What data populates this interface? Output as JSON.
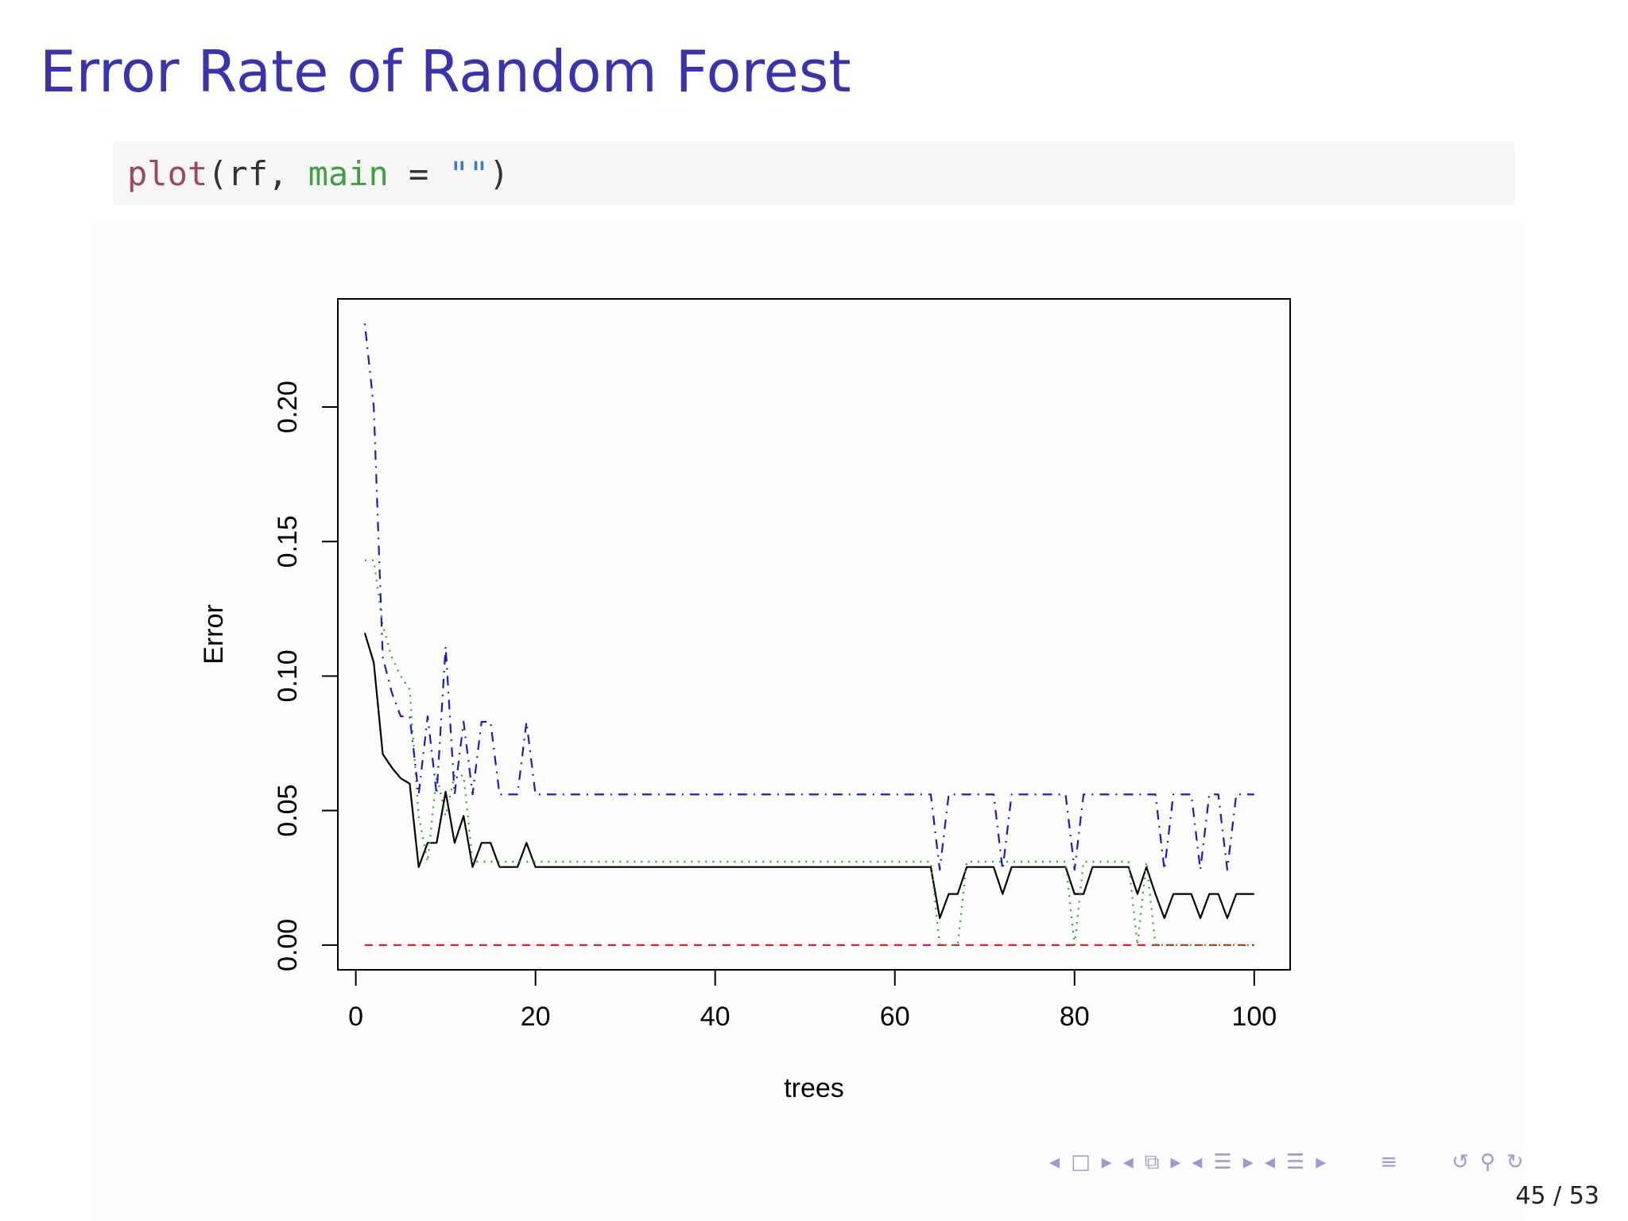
{
  "slide": {
    "title": "Error Rate of Random Forest",
    "code": {
      "fn": "plot",
      "open": "(rf, ",
      "arg": "main",
      "eq": " = ",
      "str": "\"\"",
      "close": ")"
    },
    "page": "45 / 53",
    "nav_icons": [
      "nav-left-arrow-icon",
      "frame-icon",
      "nav-right-arrow-icon",
      "nav-left-arrow-icon",
      "section-icon",
      "nav-right-arrow-icon",
      "nav-left-arrow-icon",
      "subsection-icon",
      "nav-right-arrow-icon",
      "nav-left-arrow-icon",
      "slide-list-icon",
      "nav-right-arrow-icon",
      "align-icon",
      "undo-icon",
      "search-icon",
      "redo-icon"
    ]
  },
  "chart_data": {
    "type": "line",
    "title": "",
    "xlabel": "trees",
    "ylabel": "Error",
    "xlim": [
      0,
      100
    ],
    "ylim": [
      0,
      0.23
    ],
    "xticks": [
      0,
      20,
      40,
      60,
      80,
      100
    ],
    "yticks": [
      0.0,
      0.05,
      0.1,
      0.15,
      0.2
    ],
    "ytick_labels": [
      "0.00",
      "0.05",
      "0.10",
      "0.15",
      "0.20"
    ],
    "legend": "none",
    "series": [
      {
        "color": "#000000",
        "dash": "solid",
        "x": [
          1,
          2,
          3,
          4,
          5,
          6,
          7,
          8,
          9,
          10,
          11,
          12,
          13,
          14,
          15,
          16,
          17,
          18,
          19,
          20,
          30,
          40,
          50,
          60,
          64,
          65,
          66,
          67,
          68,
          69,
          70,
          71,
          72,
          73,
          74,
          75,
          76,
          77,
          78,
          79,
          80,
          81,
          82,
          83,
          84,
          85,
          86,
          87,
          88,
          89,
          90,
          91,
          92,
          93,
          94,
          95,
          96,
          97,
          98,
          99,
          100
        ],
        "values": [
          0.116,
          0.105,
          0.071,
          0.066,
          0.062,
          0.06,
          0.029,
          0.038,
          0.038,
          0.057,
          0.038,
          0.048,
          0.029,
          0.038,
          0.038,
          0.029,
          0.029,
          0.029,
          0.038,
          0.029,
          0.029,
          0.029,
          0.029,
          0.029,
          0.029,
          0.01,
          0.019,
          0.019,
          0.029,
          0.029,
          0.029,
          0.029,
          0.019,
          0.029,
          0.029,
          0.029,
          0.029,
          0.029,
          0.029,
          0.029,
          0.019,
          0.019,
          0.029,
          0.029,
          0.029,
          0.029,
          0.029,
          0.019,
          0.029,
          0.019,
          0.01,
          0.019,
          0.019,
          0.019,
          0.01,
          0.019,
          0.019,
          0.01,
          0.019,
          0.019,
          0.019
        ]
      },
      {
        "color": "#dd2222",
        "dash": "dashed",
        "x": [
          1,
          100
        ],
        "values": [
          0,
          0
        ]
      },
      {
        "color": "#22aa22",
        "dash": "dotted",
        "x": [
          1,
          2,
          3,
          4,
          5,
          6,
          7,
          8,
          9,
          10,
          11,
          12,
          13,
          14,
          15,
          16,
          20,
          30,
          40,
          50,
          60,
          64,
          65,
          66,
          67,
          68,
          69,
          70,
          71,
          72,
          73,
          74,
          75,
          76,
          77,
          78,
          79,
          80,
          81,
          82,
          83,
          84,
          85,
          86,
          87,
          88,
          89,
          90,
          91,
          95,
          100
        ],
        "values": [
          0.143,
          0.143,
          0.119,
          0.107,
          0.1,
          0.095,
          0.048,
          0.031,
          0.063,
          0.048,
          0.063,
          0.063,
          0.031,
          0.031,
          0.031,
          0.031,
          0.031,
          0.031,
          0.031,
          0.031,
          0.031,
          0.031,
          0,
          0,
          0,
          0.031,
          0.031,
          0.031,
          0.031,
          0.031,
          0.031,
          0.031,
          0.031,
          0.031,
          0.031,
          0.031,
          0.031,
          0,
          0.031,
          0.031,
          0.031,
          0.031,
          0.031,
          0.031,
          0,
          0.031,
          0,
          0,
          0,
          0,
          0
        ]
      },
      {
        "color": "#1a1acc",
        "dash": "dashdot",
        "x": [
          1,
          2,
          3,
          4,
          5,
          6,
          7,
          8,
          9,
          10,
          11,
          12,
          13,
          14,
          15,
          16,
          17,
          18,
          19,
          20,
          30,
          40,
          50,
          60,
          64,
          65,
          66,
          67,
          68,
          69,
          70,
          71,
          72,
          73,
          74,
          75,
          76,
          77,
          78,
          79,
          80,
          81,
          82,
          83,
          84,
          85,
          86,
          87,
          88,
          89,
          90,
          91,
          92,
          93,
          94,
          95,
          96,
          97,
          98,
          99,
          100
        ],
        "values": [
          0.231,
          0.2,
          0.107,
          0.094,
          0.085,
          0.085,
          0.056,
          0.085,
          0.056,
          0.111,
          0.056,
          0.083,
          0.056,
          0.083,
          0.083,
          0.056,
          0.056,
          0.056,
          0.083,
          0.056,
          0.056,
          0.056,
          0.056,
          0.056,
          0.056,
          0.028,
          0.056,
          0.056,
          0.056,
          0.056,
          0.056,
          0.056,
          0.028,
          0.056,
          0.056,
          0.056,
          0.056,
          0.056,
          0.056,
          0.056,
          0.028,
          0.056,
          0.056,
          0.056,
          0.056,
          0.056,
          0.056,
          0.056,
          0.056,
          0.056,
          0.028,
          0.056,
          0.056,
          0.056,
          0.028,
          0.056,
          0.056,
          0.028,
          0.056,
          0.056,
          0.056
        ]
      }
    ]
  }
}
